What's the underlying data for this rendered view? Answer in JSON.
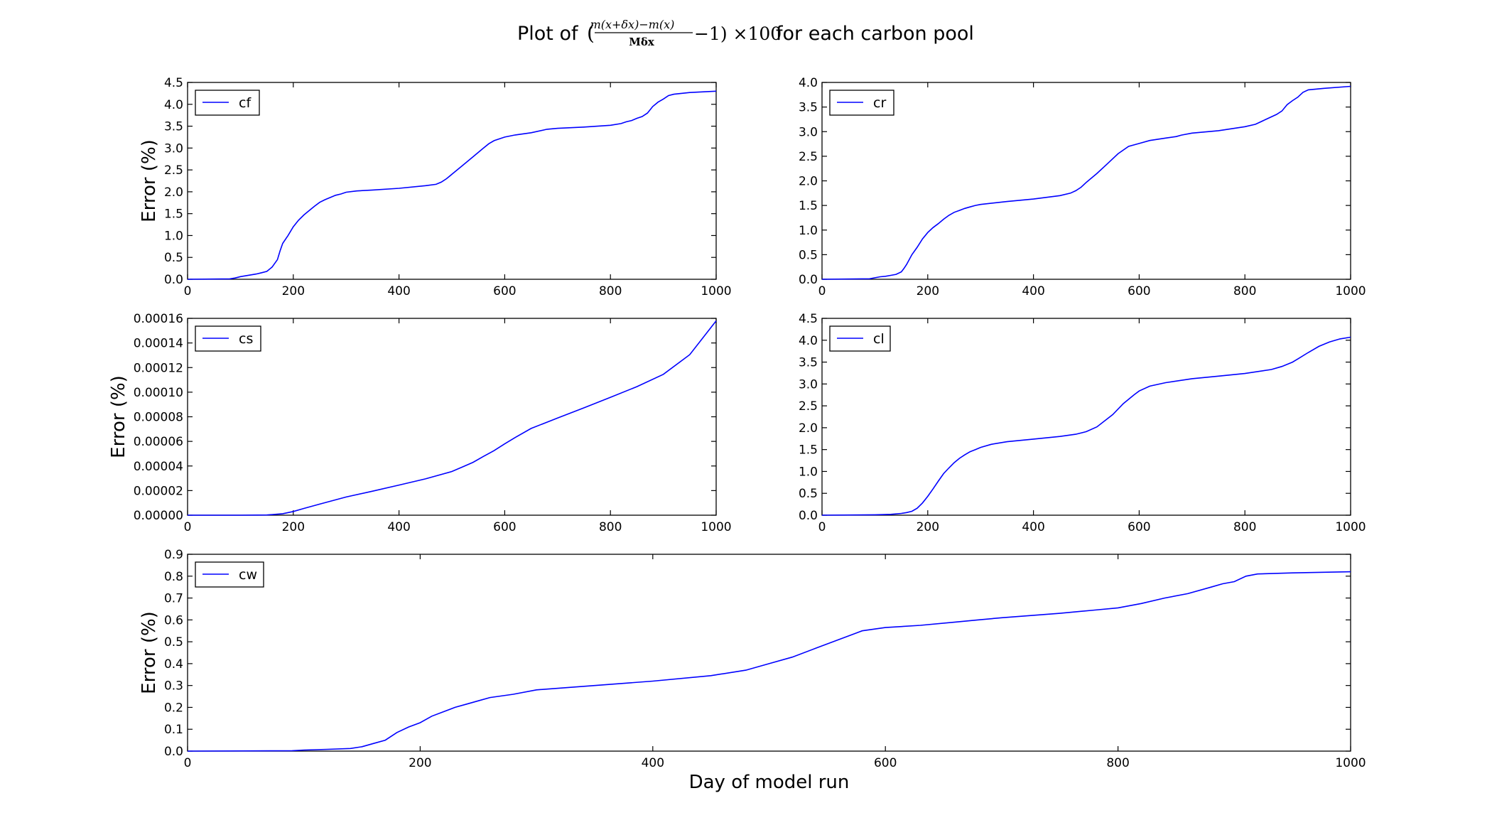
{
  "figure": {
    "title_prefix": "Plot of ",
    "title_suffix": " for each carbon pool",
    "title_formula": {
      "numerator": "m(x+δx)−m(x)",
      "denominator": "Mδx",
      "tail": "−1) ×100",
      "open": "("
    },
    "x_axis_label": "Day of model run",
    "line_color": "#0000ff"
  },
  "chart_data": [
    {
      "type": "line",
      "name": "cf",
      "ylabel": "Error (%)",
      "xlim": [
        0,
        1000
      ],
      "ylim": [
        0,
        4.5
      ],
      "xticks": [
        "0",
        "200",
        "400",
        "600",
        "800",
        "1000"
      ],
      "yticks": [
        "0.0",
        "0.5",
        "1.0",
        "1.5",
        "2.0",
        "2.5",
        "3.0",
        "3.5",
        "4.0",
        "4.5"
      ],
      "series": [
        {
          "name": "cf",
          "x": [
            0,
            80,
            90,
            100,
            110,
            120,
            130,
            140,
            150,
            160,
            170,
            175,
            180,
            190,
            200,
            210,
            220,
            230,
            240,
            250,
            260,
            270,
            280,
            290,
            300,
            320,
            350,
            400,
            450,
            470,
            480,
            490,
            500,
            520,
            540,
            560,
            570,
            580,
            600,
            620,
            650,
            680,
            700,
            750,
            800,
            820,
            830,
            840,
            850,
            860,
            870,
            880,
            890,
            900,
            910,
            920,
            950,
            1000
          ],
          "y": [
            0,
            0.01,
            0.03,
            0.06,
            0.08,
            0.1,
            0.12,
            0.15,
            0.18,
            0.28,
            0.45,
            0.65,
            0.82,
            1.0,
            1.2,
            1.35,
            1.47,
            1.57,
            1.67,
            1.76,
            1.82,
            1.87,
            1.92,
            1.95,
            1.99,
            2.02,
            2.04,
            2.08,
            2.14,
            2.17,
            2.22,
            2.3,
            2.4,
            2.6,
            2.8,
            3.0,
            3.1,
            3.17,
            3.25,
            3.3,
            3.35,
            3.43,
            3.45,
            3.48,
            3.52,
            3.56,
            3.6,
            3.63,
            3.68,
            3.72,
            3.8,
            3.95,
            4.05,
            4.12,
            4.2,
            4.23,
            4.27,
            4.3
          ]
        }
      ]
    },
    {
      "type": "line",
      "name": "cr",
      "ylabel": "",
      "xlim": [
        0,
        1000
      ],
      "ylim": [
        0,
        4.0
      ],
      "xticks": [
        "0",
        "200",
        "400",
        "600",
        "800",
        "1000"
      ],
      "yticks": [
        "0.0",
        "0.5",
        "1.0",
        "1.5",
        "2.0",
        "2.5",
        "3.0",
        "3.5",
        "4.0"
      ],
      "series": [
        {
          "name": "cr",
          "x": [
            0,
            90,
            100,
            110,
            120,
            130,
            140,
            150,
            155,
            160,
            170,
            180,
            190,
            200,
            210,
            220,
            230,
            240,
            250,
            260,
            270,
            280,
            290,
            300,
            350,
            400,
            450,
            470,
            480,
            490,
            500,
            520,
            540,
            560,
            580,
            600,
            620,
            650,
            670,
            680,
            700,
            750,
            800,
            820,
            840,
            860,
            870,
            880,
            890,
            900,
            910,
            920,
            950,
            1000
          ],
          "y": [
            0,
            0.01,
            0.03,
            0.05,
            0.06,
            0.08,
            0.1,
            0.15,
            0.22,
            0.3,
            0.5,
            0.65,
            0.82,
            0.95,
            1.05,
            1.13,
            1.22,
            1.3,
            1.36,
            1.4,
            1.44,
            1.47,
            1.5,
            1.52,
            1.58,
            1.63,
            1.7,
            1.75,
            1.8,
            1.87,
            1.97,
            2.15,
            2.35,
            2.55,
            2.7,
            2.76,
            2.82,
            2.87,
            2.9,
            2.93,
            2.97,
            3.02,
            3.1,
            3.15,
            3.25,
            3.35,
            3.42,
            3.55,
            3.63,
            3.7,
            3.8,
            3.85,
            3.88,
            3.92
          ]
        }
      ]
    },
    {
      "type": "line",
      "name": "cs",
      "ylabel": "Error (%)",
      "xlim": [
        0,
        1000
      ],
      "ylim": [
        0,
        0.00016
      ],
      "xticks": [
        "0",
        "200",
        "400",
        "600",
        "800",
        "1000"
      ],
      "yticks": [
        "0.00000",
        "0.00002",
        "0.00004",
        "0.00006",
        "0.00008",
        "0.00010",
        "0.00012",
        "0.00014",
        "0.00016"
      ],
      "series": [
        {
          "name": "cs",
          "x": [
            0,
            100,
            150,
            180,
            200,
            220,
            250,
            300,
            350,
            400,
            450,
            500,
            520,
            540,
            560,
            580,
            600,
            620,
            650,
            700,
            750,
            800,
            850,
            900,
            950,
            1000
          ],
          "y": [
            0,
            0.0,
            2e-07,
            1.2e-06,
            3e-06,
            5.5e-06,
            9e-06,
            1.48e-05,
            1.95e-05,
            2.45e-05,
            2.95e-05,
            3.55e-05,
            3.92e-05,
            4.3e-05,
            4.78e-05,
            5.25e-05,
            5.8e-05,
            6.32e-05,
            7.05e-05,
            7.9e-05,
            8.73e-05,
            9.58e-05,
            0.0001045,
            0.0001145,
            0.0001305,
            0.000158
          ]
        }
      ]
    },
    {
      "type": "line",
      "name": "cl",
      "ylabel": "",
      "xlim": [
        0,
        1000
      ],
      "ylim": [
        0,
        4.5
      ],
      "xticks": [
        "0",
        "200",
        "400",
        "600",
        "800",
        "1000"
      ],
      "yticks": [
        "0.0",
        "0.5",
        "1.0",
        "1.5",
        "2.0",
        "2.5",
        "3.0",
        "3.5",
        "4.0",
        "4.5"
      ],
      "series": [
        {
          "name": "cl",
          "x": [
            0,
            100,
            130,
            150,
            160,
            170,
            180,
            190,
            200,
            210,
            220,
            230,
            240,
            250,
            260,
            270,
            280,
            290,
            300,
            320,
            350,
            400,
            450,
            480,
            500,
            520,
            550,
            570,
            590,
            600,
            620,
            650,
            700,
            750,
            800,
            850,
            870,
            890,
            900,
            920,
            940,
            960,
            980,
            1000
          ],
          "y": [
            0,
            0.01,
            0.02,
            0.04,
            0.06,
            0.09,
            0.16,
            0.28,
            0.43,
            0.6,
            0.78,
            0.95,
            1.08,
            1.2,
            1.3,
            1.38,
            1.45,
            1.5,
            1.55,
            1.62,
            1.68,
            1.74,
            1.8,
            1.85,
            1.91,
            2.02,
            2.3,
            2.55,
            2.75,
            2.84,
            2.95,
            3.03,
            3.12,
            3.18,
            3.24,
            3.33,
            3.4,
            3.5,
            3.57,
            3.72,
            3.86,
            3.96,
            4.03,
            4.07
          ]
        }
      ]
    },
    {
      "type": "line",
      "name": "cw",
      "ylabel": "Error (%)",
      "xlabel": "Day of model run",
      "xlim": [
        0,
        1000
      ],
      "ylim": [
        0,
        0.9
      ],
      "xticks": [
        "0",
        "200",
        "400",
        "600",
        "800",
        "1000"
      ],
      "yticks": [
        "0.0",
        "0.1",
        "0.2",
        "0.3",
        "0.4",
        "0.5",
        "0.6",
        "0.7",
        "0.8",
        "0.9"
      ],
      "series": [
        {
          "name": "cw",
          "x": [
            0,
            90,
            100,
            120,
            140,
            150,
            160,
            170,
            180,
            190,
            200,
            210,
            220,
            230,
            240,
            250,
            260,
            280,
            300,
            350,
            400,
            450,
            480,
            500,
            520,
            540,
            560,
            570,
            580,
            600,
            630,
            660,
            680,
            700,
            750,
            780,
            800,
            820,
            840,
            860,
            880,
            890,
            900,
            910,
            920,
            950,
            1000
          ],
          "y": [
            0,
            0.002,
            0.005,
            0.008,
            0.012,
            0.02,
            0.035,
            0.05,
            0.085,
            0.11,
            0.13,
            0.16,
            0.18,
            0.2,
            0.215,
            0.23,
            0.245,
            0.26,
            0.28,
            0.3,
            0.32,
            0.345,
            0.37,
            0.4,
            0.43,
            0.47,
            0.51,
            0.53,
            0.55,
            0.565,
            0.575,
            0.59,
            0.6,
            0.61,
            0.63,
            0.645,
            0.655,
            0.675,
            0.7,
            0.72,
            0.75,
            0.765,
            0.775,
            0.8,
            0.81,
            0.815,
            0.82
          ]
        }
      ]
    }
  ]
}
